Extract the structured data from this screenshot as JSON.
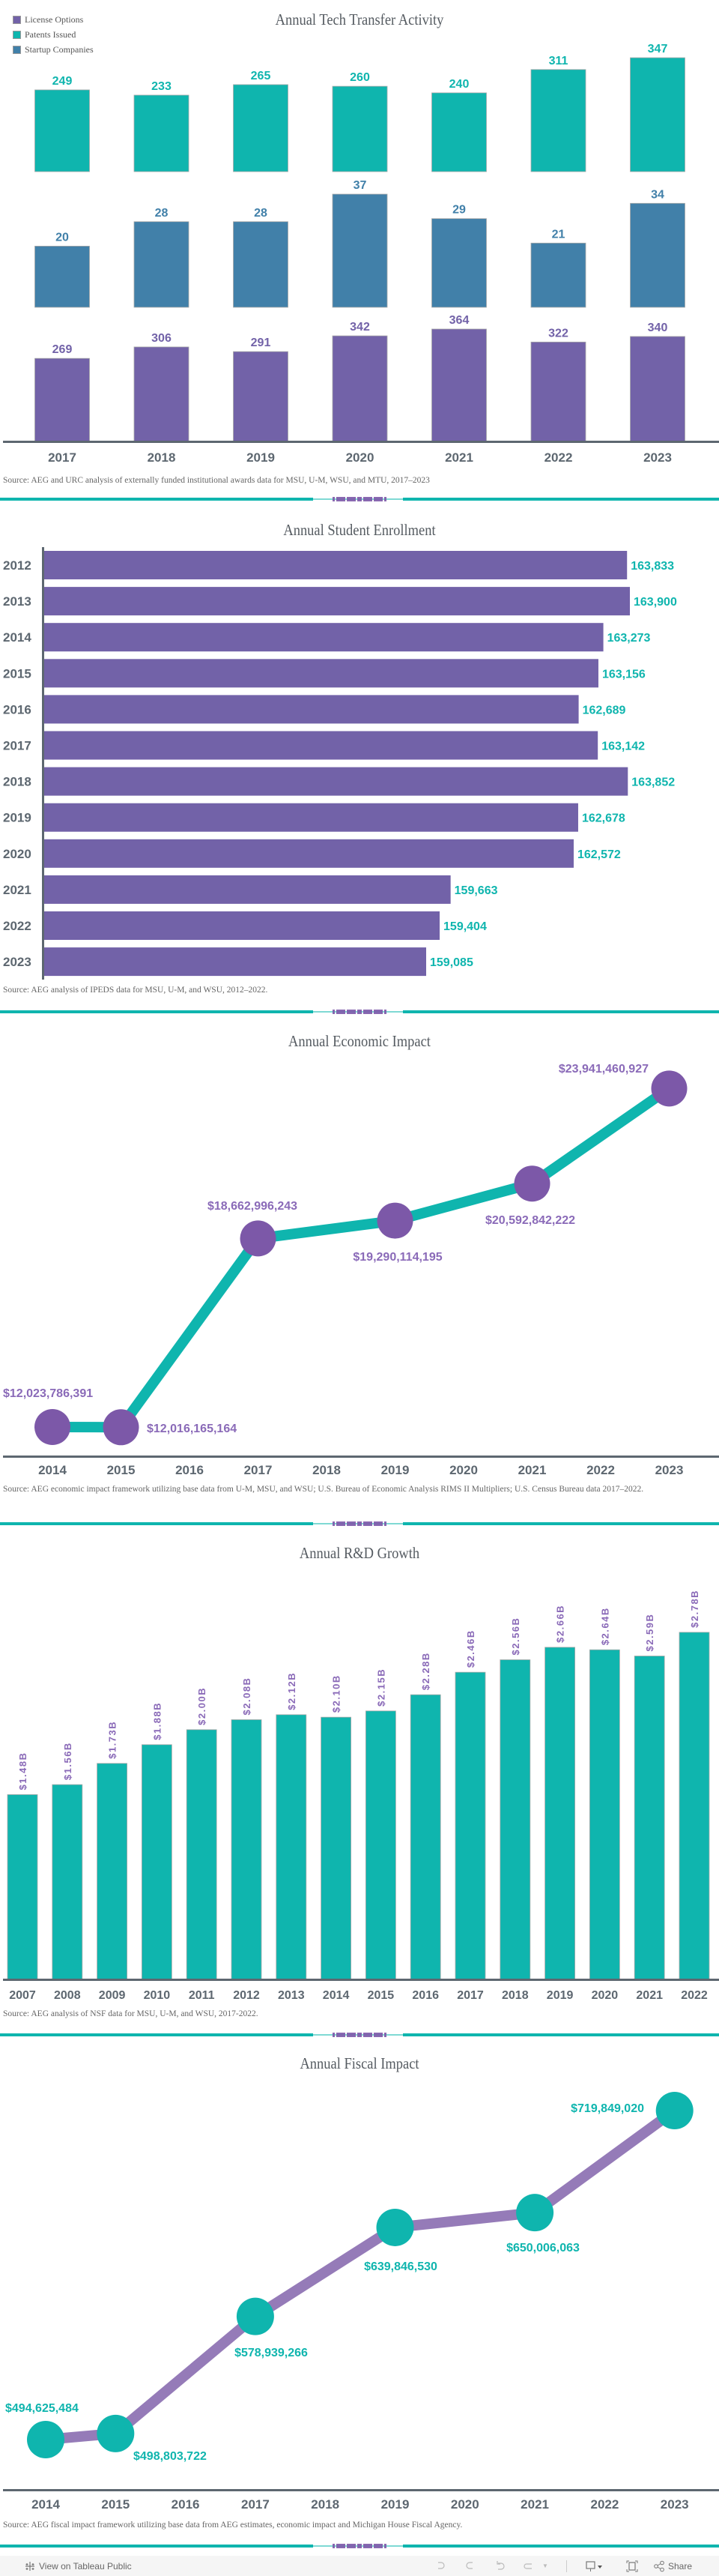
{
  "colors": {
    "license": "#7262a8",
    "patents": "#0fb5ae",
    "startups": "#4180a9",
    "axis": "#5d6770",
    "econ_line": "#0fb5ae",
    "econ_point": "#7c58a8",
    "econ_label": "#8a6ab8",
    "fiscal_line": "#957bb8",
    "fiscal_point": "#0fb5ae",
    "rd_label": "#8a6ab8"
  },
  "chart_data": [
    {
      "type": "bar",
      "title": "Annual Tech Transfer Activity",
      "categories": [
        "2017",
        "2018",
        "2019",
        "2020",
        "2021",
        "2022",
        "2023"
      ],
      "series": [
        {
          "name": "License Options",
          "values": [
            269,
            306,
            291,
            342,
            364,
            322,
            340
          ],
          "labels": [
            "269",
            "306",
            "291",
            "342",
            "364",
            "322",
            "340"
          ]
        },
        {
          "name": "Patents Issued",
          "values": [
            249,
            233,
            265,
            260,
            240,
            311,
            347
          ],
          "labels": [
            "249",
            "233",
            "265",
            "260",
            "240",
            "311",
            "347"
          ]
        },
        {
          "name": "Startup Companies",
          "values": [
            20,
            28,
            28,
            37,
            29,
            21,
            34
          ],
          "labels": [
            "20",
            "28",
            "28",
            "37",
            "29",
            "21",
            "34"
          ]
        }
      ],
      "legend": "top-left",
      "source": "Source: AEG and URC analysis of externally funded institutional awards data for MSU, U-M, WSU, and MTU, 2017–2023"
    },
    {
      "type": "bar",
      "orientation": "horizontal",
      "title": "Annual Student Enrollment",
      "categories": [
        "2012",
        "2013",
        "2014",
        "2015",
        "2016",
        "2017",
        "2018",
        "2019",
        "2020",
        "2021",
        "2022",
        "2023"
      ],
      "values": [
        163833,
        163900,
        163273,
        163156,
        162689,
        163142,
        163852,
        162678,
        162572,
        159663,
        159404,
        159085
      ],
      "labels": [
        "163,833",
        "163,900",
        "163,273",
        "163,156",
        "162,689",
        "163,142",
        "163,852",
        "162,678",
        "162,572",
        "159,663",
        "159,404",
        "159,085"
      ],
      "xlim": [
        150000,
        164000
      ],
      "source": "Source: AEG analysis of IPEDS data for MSU, U-M, and WSU, 2012–2022."
    },
    {
      "type": "line",
      "title": "Annual Economic Impact",
      "axis_years": [
        "2014",
        "2015",
        "2016",
        "2017",
        "2018",
        "2019",
        "2020",
        "2021",
        "2022",
        "2023"
      ],
      "x": [
        "2014",
        "2015",
        "2017",
        "2019",
        "2021",
        "2023"
      ],
      "values": [
        12023786391,
        12016165164,
        18662996243,
        19290114195,
        20592842222,
        23941460927
      ],
      "labels": [
        "$12,023,786,391",
        "$12,016,165,164",
        "$18,662,996,243",
        "$19,290,114,195",
        "$20,592,842,222",
        "$23,941,460,927"
      ],
      "source": "Source: AEG economic impact framework utilizing base data from U-M, MSU, and WSU; U.S. Bureau of Economic Analysis RIMS II Multipliers; U.S. Census Bureau data 2017–2022."
    },
    {
      "type": "bar",
      "title": "Annual R&D Growth",
      "categories": [
        "2007",
        "2008",
        "2009",
        "2010",
        "2011",
        "2012",
        "2013",
        "2014",
        "2015",
        "2016",
        "2017",
        "2018",
        "2019",
        "2020",
        "2021",
        "2022"
      ],
      "values": [
        1.48,
        1.56,
        1.73,
        1.88,
        2.0,
        2.08,
        2.12,
        2.1,
        2.15,
        2.28,
        2.46,
        2.56,
        2.66,
        2.64,
        2.59,
        2.78
      ],
      "labels": [
        "$1.48B",
        "$1.56B",
        "$1.73B",
        "$1.88B",
        "$2.00B",
        "$2.08B",
        "$2.12B",
        "$2.10B",
        "$2.15B",
        "$2.28B",
        "$2.46B",
        "$2.56B",
        "$2.66B",
        "$2.64B",
        "$2.59B",
        "$2.78B"
      ],
      "unit": "billion USD",
      "ylim": [
        0,
        2.8
      ],
      "source": "Source: AEG analysis of NSF data for MSU, U-M, and WSU, 2017-2022."
    },
    {
      "type": "line",
      "title": "Annual Fiscal Impact",
      "axis_years": [
        "2014",
        "2015",
        "2016",
        "2017",
        "2018",
        "2019",
        "2020",
        "2021",
        "2022",
        "2023"
      ],
      "x": [
        "2014",
        "2015",
        "2017",
        "2019",
        "2021",
        "2023"
      ],
      "values": [
        494625484,
        498803722,
        578939266,
        639846530,
        650006063,
        719849020
      ],
      "labels": [
        "$494,625,484",
        "$498,803,722",
        "$578,939,266",
        "$639,846,530",
        "$650,006,063",
        "$719,849,020"
      ],
      "source": "Source: AEG fiscal impact framework utilizing base data from AEG estimates, economic impact and Michigan House Fiscal Agency."
    }
  ],
  "toolbar": {
    "view_label": "View on Tableau Public",
    "share_label": "Share",
    "icons": [
      "tableau-logo-icon",
      "undo-icon",
      "redo-icon",
      "revert-icon",
      "refresh-icon",
      "dropdown-icon",
      "device-layout-icon",
      "fullscreen-icon",
      "share-icon"
    ]
  }
}
